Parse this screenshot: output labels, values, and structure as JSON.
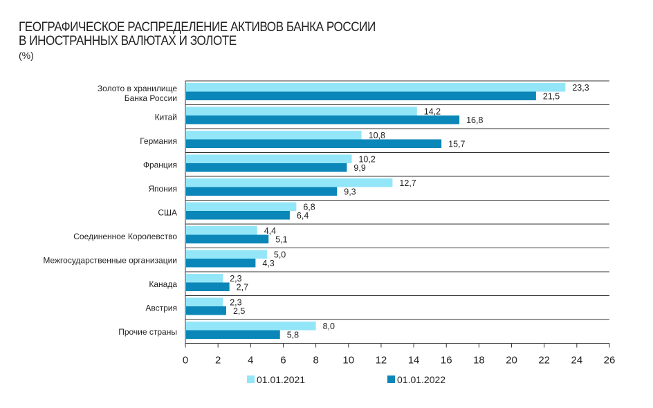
{
  "chart_data": {
    "type": "bar",
    "orientation": "horizontal",
    "title_line1": "ГЕОГРАФИЧЕСКОЕ РАСПРЕДЕЛЕНИЕ АКТИВОВ БАНКА РОССИИ",
    "title_line2": "В ИНОСТРАННЫХ ВАЛЮТАХ И ЗОЛОТЕ",
    "unit": "(%)",
    "categories": [
      [
        "Золото в хранилище",
        "Банка России"
      ],
      [
        "Китай"
      ],
      [
        "Германия"
      ],
      [
        "Франция"
      ],
      [
        "Япония"
      ],
      [
        "США"
      ],
      [
        "Соединенное Королевство"
      ],
      [
        "Межгосударственные организации"
      ],
      [
        "Канада"
      ],
      [
        "Австрия"
      ],
      [
        "Прочие страны"
      ]
    ],
    "series": [
      {
        "name": "01.01.2021",
        "color": "#93e6f8",
        "values": [
          23.3,
          14.2,
          10.8,
          10.2,
          12.7,
          6.8,
          4.4,
          5.0,
          2.3,
          2.3,
          8.0
        ]
      },
      {
        "name": "01.01.2022",
        "color": "#0a86b8",
        "values": [
          21.5,
          16.8,
          15.7,
          9.9,
          9.3,
          6.4,
          5.1,
          4.3,
          2.7,
          2.5,
          5.8
        ]
      }
    ],
    "xlim": [
      0,
      26
    ],
    "xticks": [
      0,
      2,
      4,
      6,
      8,
      10,
      12,
      14,
      16,
      18,
      20,
      22,
      24,
      26
    ],
    "legend_position": "bottom"
  }
}
